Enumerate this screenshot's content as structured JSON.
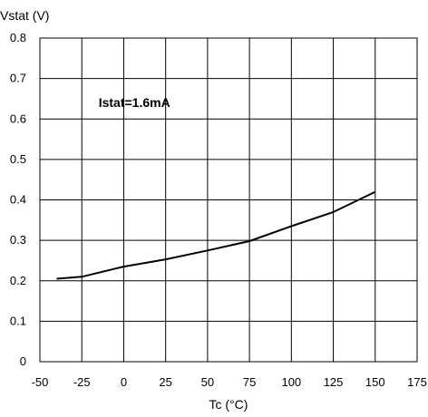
{
  "chart_data": {
    "type": "line",
    "title": "",
    "xlabel": "Tc (°C)",
    "ylabel": "Vstat (V)",
    "xlim": [
      -50,
      175
    ],
    "ylim": [
      0,
      0.8
    ],
    "x_ticks": [
      -50,
      -25,
      0,
      25,
      50,
      75,
      100,
      125,
      150,
      175
    ],
    "y_ticks": [
      0,
      0.1,
      0.2,
      0.3,
      0.4,
      0.5,
      0.6,
      0.7,
      0.8
    ],
    "x_tick_labels": [
      "-50",
      "-25",
      "0",
      "25",
      "50",
      "75",
      "100",
      "125",
      "150",
      "175"
    ],
    "y_tick_labels": [
      "0",
      "0.1",
      "0.2",
      "0.3",
      "0.4",
      "0.5",
      "0.6",
      "0.7",
      "0.8"
    ],
    "grid": true,
    "annotation": "Istat=1.6mA",
    "annotation_at": [
      -15,
      0.63
    ],
    "series": [
      {
        "color": "#000000",
        "x": [
          -40,
          -25,
          0,
          25,
          50,
          75,
          100,
          125,
          150
        ],
        "y": [
          0.205,
          0.21,
          0.235,
          0.253,
          0.275,
          0.298,
          0.335,
          0.37,
          0.42
        ]
      }
    ]
  }
}
